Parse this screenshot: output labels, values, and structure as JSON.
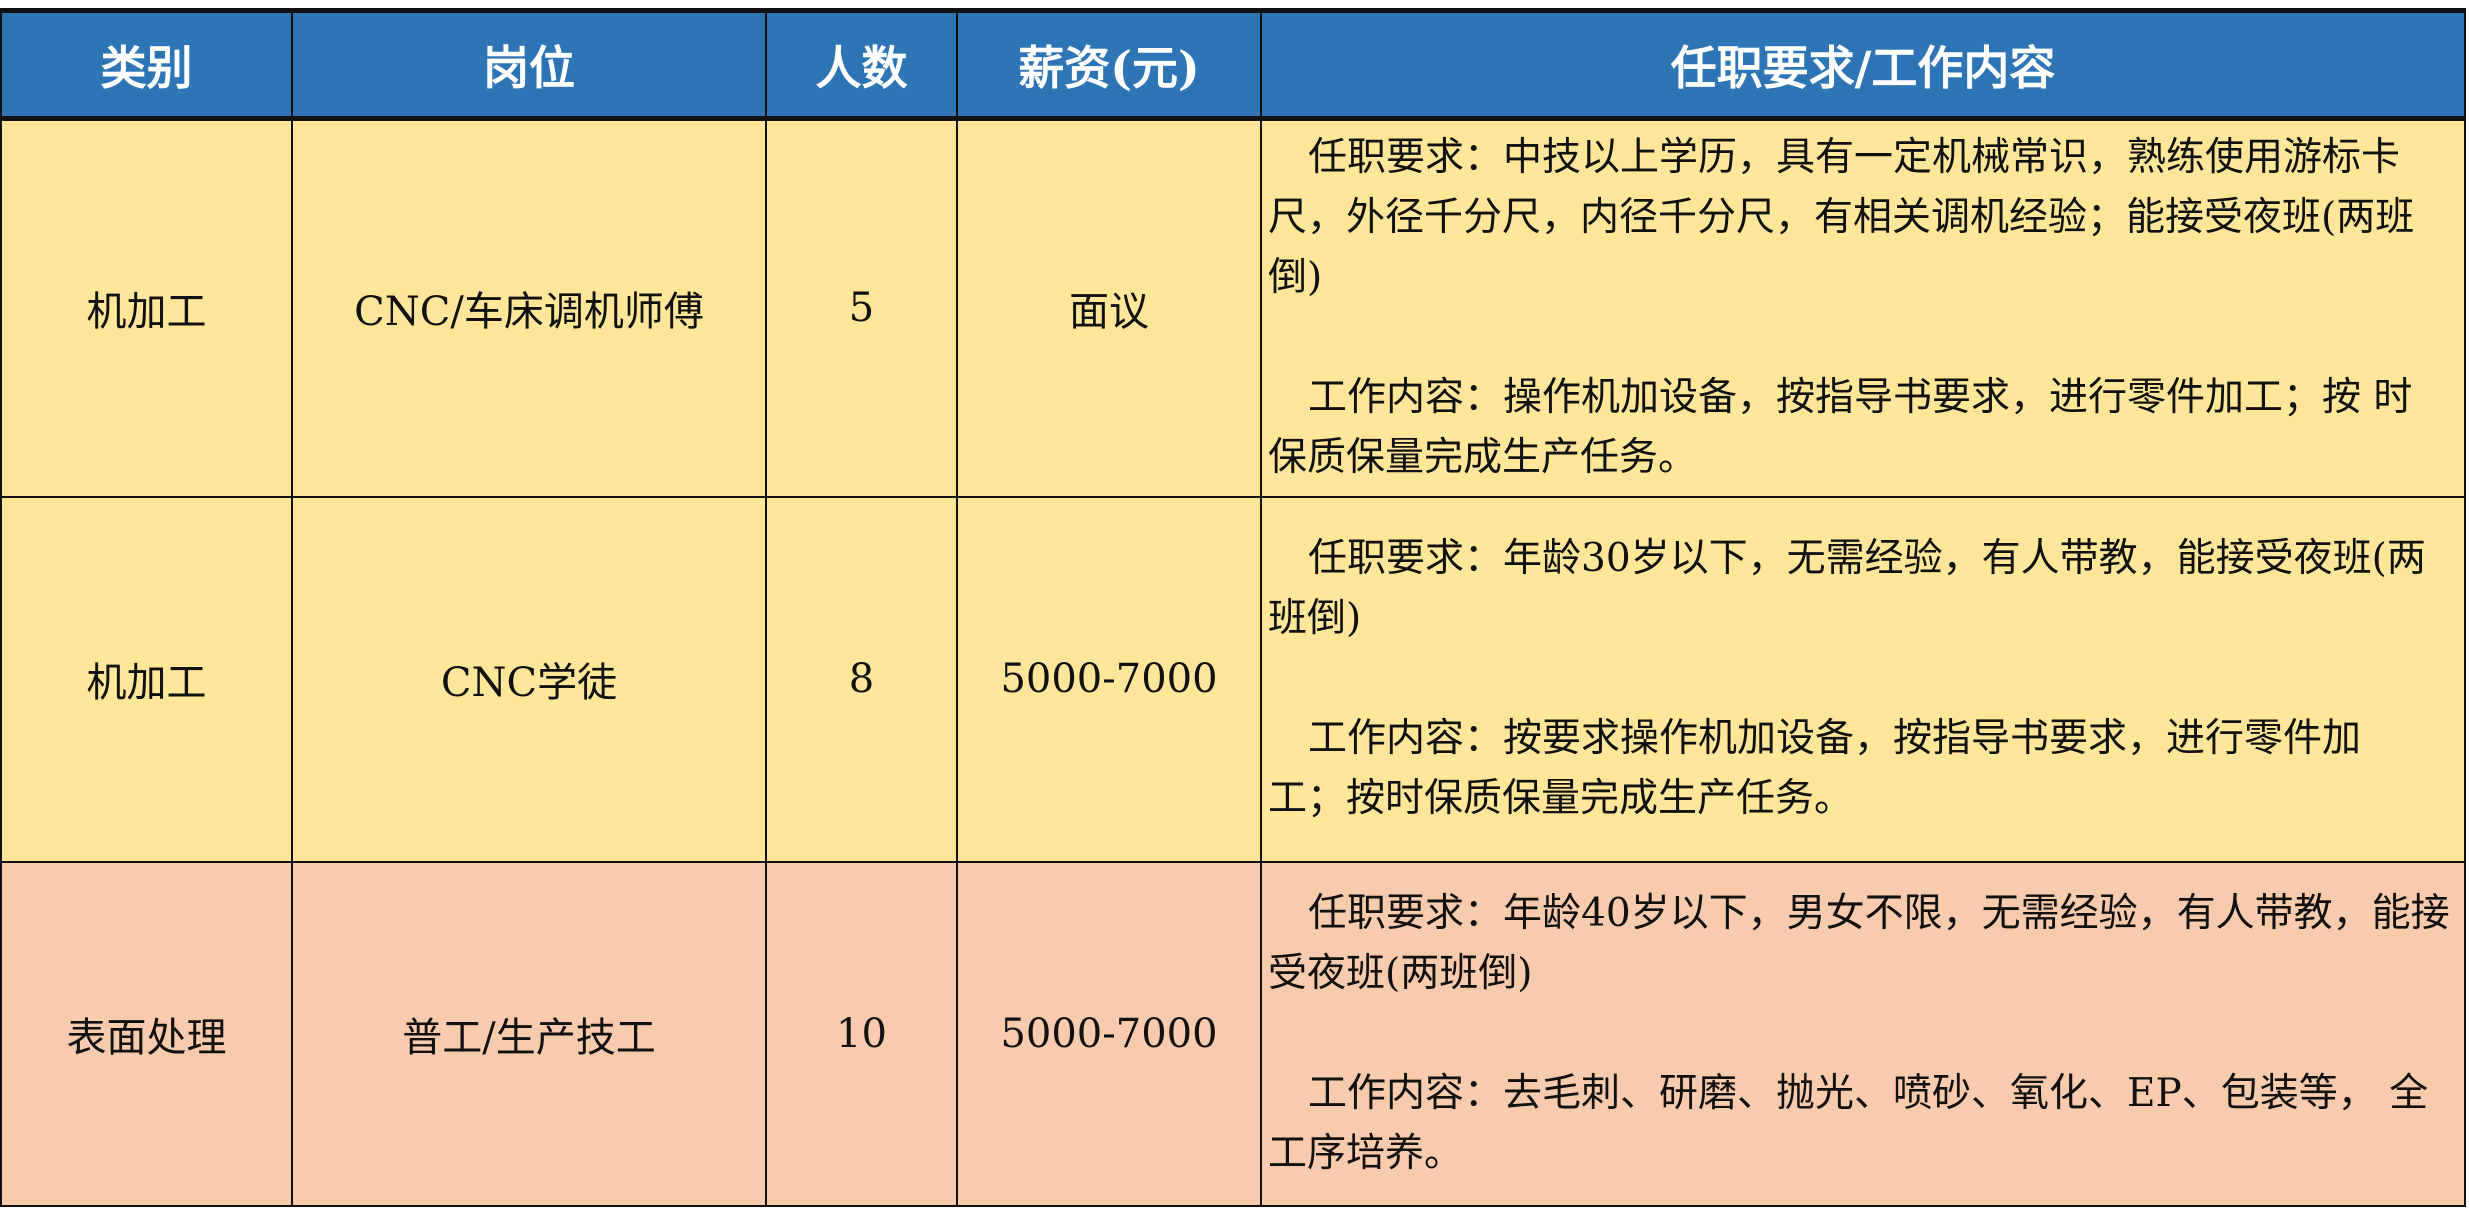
{
  "colors": {
    "header": "#2E75B6",
    "row_yellow": "#FFE699",
    "row_pink": "#F8CBAD"
  },
  "headers": [
    "类别",
    "岗位",
    "人数",
    "薪资(元)",
    "任职要求/工作内容"
  ],
  "rows": [
    {
      "category": "机加工",
      "position": "CNC/车床调机师傅",
      "count": "5",
      "salary": "面议",
      "requirement": "任职要求：中技以上学历，具有一定机械常识，熟练使用游标卡尺，外径千分尺，内径千分尺，有相关调机经验；能接受夜班(两班倒)",
      "content": "工作内容：操作机加设备，按指导书要求，进行零件加工；按 时保质保量完成生产任务。"
    },
    {
      "category": "机加工",
      "position": "CNC学徒",
      "count": "8",
      "salary": "5000-7000",
      "requirement": "任职要求：年龄30岁以下，无需经验，有人带教，能接受夜班(两班倒)",
      "content": "工作内容：按要求操作机加设备，按指导书要求，进行零件加 工；按时保质保量完成生产任务。"
    },
    {
      "category": "表面处理",
      "position": "普工/生产技工",
      "count": "10",
      "salary": "5000-7000",
      "requirement": "任职要求：年龄40岁以下，男女不限，无需经验，有人带教，能接受夜班(两班倒)",
      "content": "工作内容：去毛刺、研磨、抛光、喷砂、氧化、EP、包装等， 全工序培养。"
    }
  ]
}
